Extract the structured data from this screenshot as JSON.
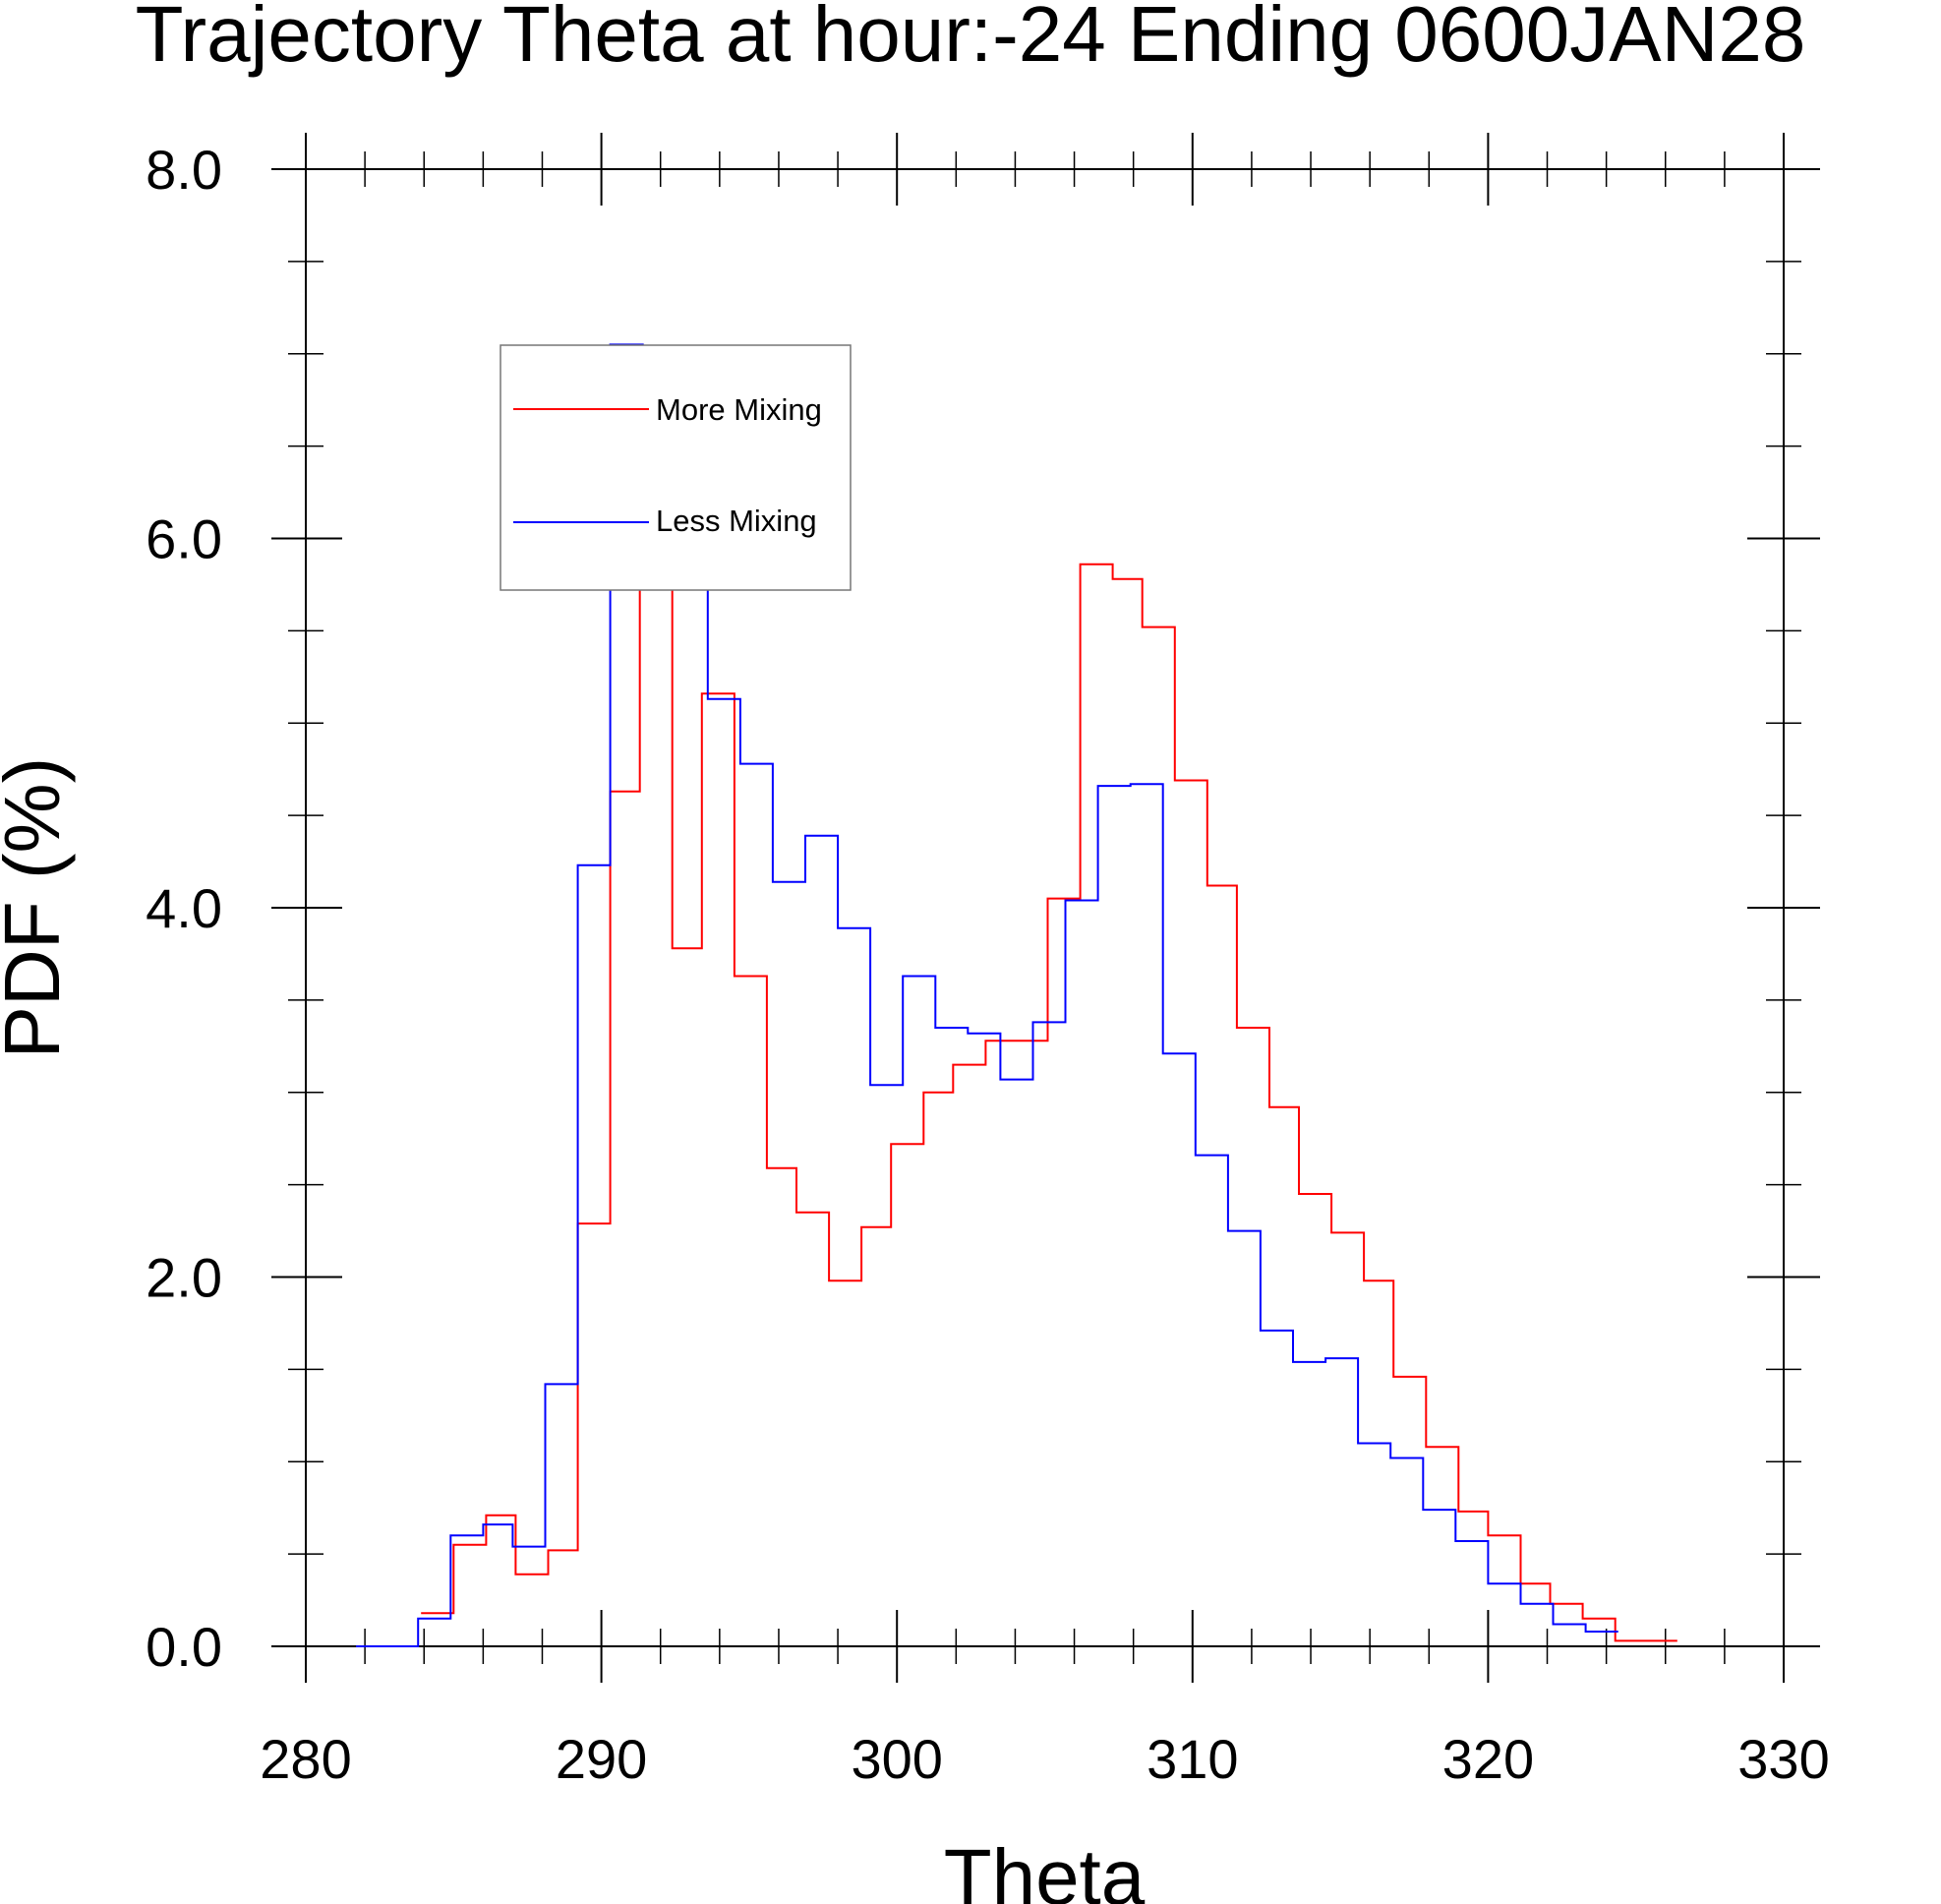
{
  "chart_data": {
    "type": "line",
    "style": "step-histogram",
    "title": "Trajectory Theta at hour:-24 Ending 0600JAN28",
    "xlabel": "Theta",
    "ylabel": "PDF (%)",
    "xlim": [
      280,
      330
    ],
    "ylim": [
      0,
      8
    ],
    "x_ticks": [
      280,
      290,
      300,
      310,
      320,
      330
    ],
    "x_tick_labels": [
      "280",
      "290",
      "300",
      "310",
      "320",
      "330"
    ],
    "y_ticks": [
      0,
      2,
      4,
      6,
      8
    ],
    "y_tick_labels": [
      "0.0",
      "2.0",
      "4.0",
      "6.0",
      "8.0"
    ],
    "x_minor_step": 2,
    "y_minor_step": 0.5,
    "grid": false,
    "legend_position": "top-left",
    "series": [
      {
        "name": "More Mixing",
        "color": "#ff0000",
        "bin_edges": [
          283.9,
          285.0,
          286.1,
          287.1,
          288.2,
          289.2,
          290.3,
          291.3,
          292.4,
          293.4,
          294.5,
          295.6,
          296.6,
          297.7,
          298.8,
          299.8,
          300.9,
          301.9,
          303.0,
          304.1,
          305.1,
          306.2,
          307.3,
          308.3,
          309.4,
          310.5,
          311.5,
          312.6,
          313.6,
          314.7,
          315.8,
          316.8,
          317.9,
          319.0,
          320.0,
          321.1,
          322.1,
          323.2,
          324.3,
          325.3,
          326.4
        ],
        "values": [
          0.18,
          0.55,
          0.71,
          0.39,
          0.52,
          2.29,
          4.63,
          5.79,
          3.78,
          5.16,
          3.63,
          2.59,
          2.35,
          1.98,
          2.27,
          2.72,
          3.0,
          3.15,
          3.28,
          3.28,
          4.05,
          5.86,
          5.78,
          5.52,
          4.69,
          4.12,
          3.35,
          2.92,
          2.45,
          2.24,
          1.98,
          1.46,
          1.08,
          0.73,
          0.6,
          0.34,
          0.23,
          0.15,
          0.03,
          0.03
        ]
      },
      {
        "name": "Less Mixing",
        "color": "#0000ff",
        "bin_edges": [
          281.7,
          283.8,
          284.9,
          286.0,
          287.0,
          288.1,
          289.2,
          290.3,
          291.4,
          292.5,
          293.6,
          294.7,
          295.8,
          296.9,
          298.0,
          299.1,
          300.2,
          301.3,
          302.4,
          303.5,
          304.6,
          305.7,
          306.8,
          307.9,
          309.0,
          310.1,
          311.2,
          312.3,
          313.4,
          314.5,
          315.6,
          316.7,
          317.8,
          318.9,
          320.0,
          321.1,
          322.2,
          323.3,
          324.4
        ],
        "values": [
          0.0,
          0.15,
          0.6,
          0.66,
          0.54,
          1.42,
          4.23,
          7.05,
          6.76,
          5.73,
          5.13,
          4.78,
          4.14,
          4.39,
          3.89,
          3.04,
          3.63,
          3.35,
          3.32,
          3.07,
          3.38,
          4.04,
          4.66,
          4.67,
          3.21,
          2.66,
          2.25,
          1.71,
          1.54,
          1.56,
          1.1,
          1.02,
          0.74,
          0.57,
          0.34,
          0.23,
          0.12,
          0.08
        ]
      }
    ]
  }
}
